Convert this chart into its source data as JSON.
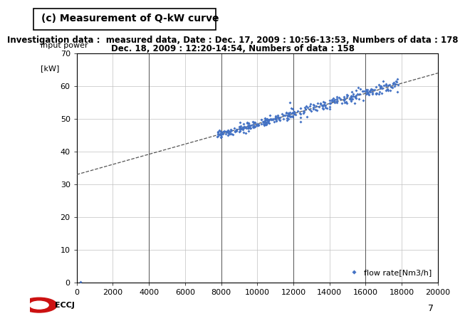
{
  "title": "(c) Measurement of Q-kW curve",
  "subtitle_line1": "Investigation data :  measured data, Date : Dec. 17, 2009 : 10:56-13:53, Numbers of data : 178",
  "subtitle_line2": "Dec. 18, 2009 : 12:20-14:54, Numbers of data : 158",
  "ylabel_line1": "input power",
  "ylabel_line2": "[kW]",
  "xlabel_legend": "flow rate[Nm3/h]",
  "xlim": [
    0,
    20000
  ],
  "ylim": [
    0,
    70
  ],
  "xticks": [
    0,
    2000,
    4000,
    6000,
    8000,
    10000,
    12000,
    14000,
    16000,
    18000,
    20000
  ],
  "yticks": [
    0,
    10,
    20,
    30,
    40,
    50,
    60,
    70
  ],
  "trend_x": [
    0,
    20000
  ],
  "trend_y": [
    33.0,
    64.0
  ],
  "marker_color": "#4472C4",
  "trend_color": "#555555",
  "page_number": "7",
  "title_fontsize": 10,
  "subtitle_fontsize": 8.5,
  "axis_label_fontsize": 8,
  "tick_fontsize": 8
}
